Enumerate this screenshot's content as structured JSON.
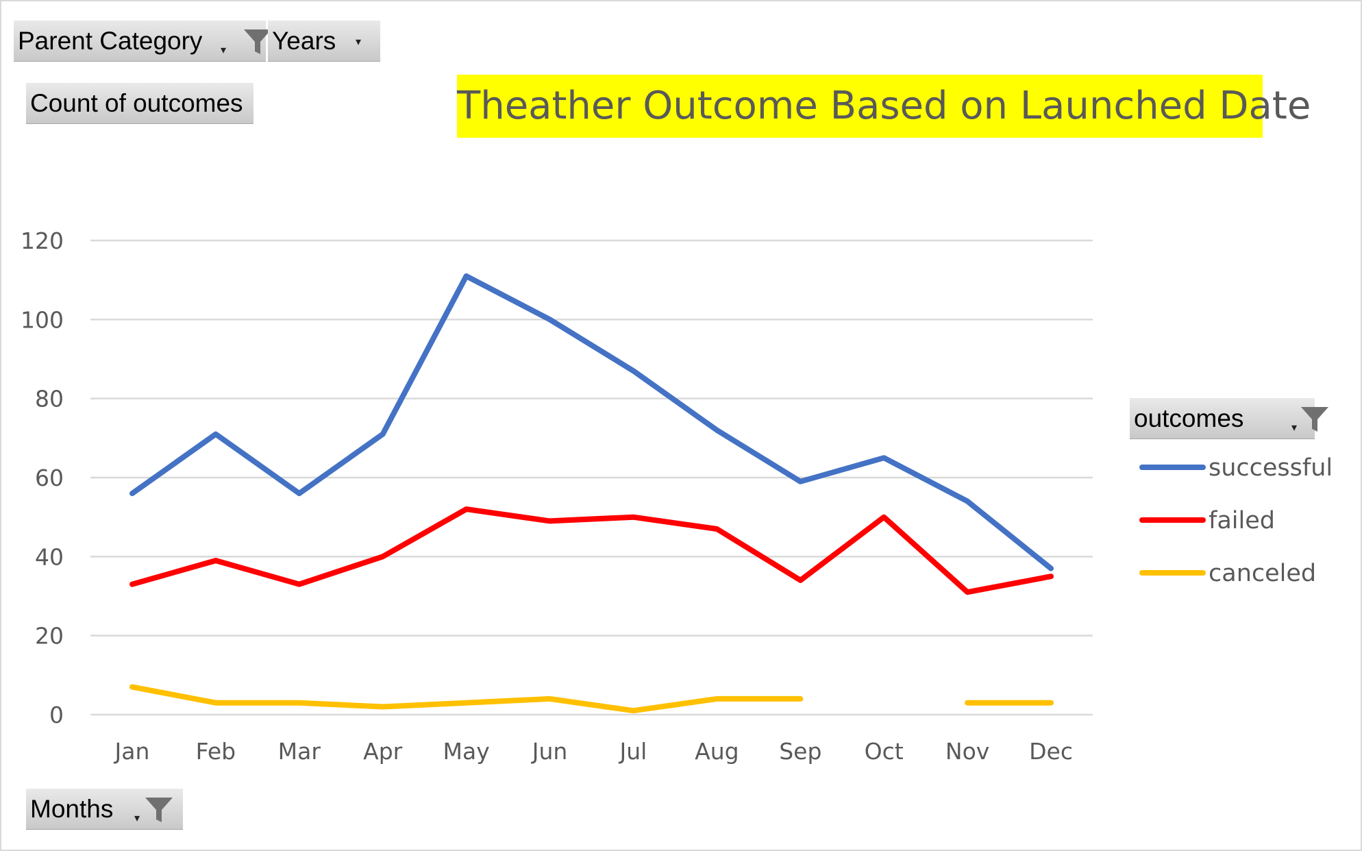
{
  "filters": {
    "parent_category": "Parent Category",
    "years": "Years",
    "values_field": "Count of outcomes",
    "axis_field": "Months",
    "legend_field": "outcomes"
  },
  "icons": {
    "filter": "funnel-filter-icon",
    "dropdown": "dropdown-arrow-icon"
  },
  "chart_data": {
    "type": "line",
    "title": "Theather Outcome Based on Launched Date",
    "xlabel": "",
    "ylabel": "",
    "categories": [
      "Jan",
      "Feb",
      "Mar",
      "Apr",
      "May",
      "Jun",
      "Jul",
      "Aug",
      "Sep",
      "Oct",
      "Nov",
      "Dec"
    ],
    "ylim": [
      0,
      120
    ],
    "yticks": [
      "0",
      "20",
      "40",
      "60",
      "80",
      "100",
      "120"
    ],
    "grid": true,
    "legend_position": "right",
    "series": [
      {
        "name": "successful",
        "color": "#4472c4",
        "values": [
          56,
          71,
          56,
          71,
          111,
          100,
          87,
          72,
          59,
          65,
          54,
          37
        ]
      },
      {
        "name": "failed",
        "color": "#ff0000",
        "values": [
          33,
          39,
          33,
          40,
          52,
          49,
          50,
          47,
          34,
          50,
          31,
          35
        ]
      },
      {
        "name": "canceled",
        "color": "#ffc000",
        "values": [
          7,
          3,
          3,
          2,
          3,
          4,
          1,
          4,
          4,
          null,
          3,
          3
        ]
      }
    ]
  }
}
